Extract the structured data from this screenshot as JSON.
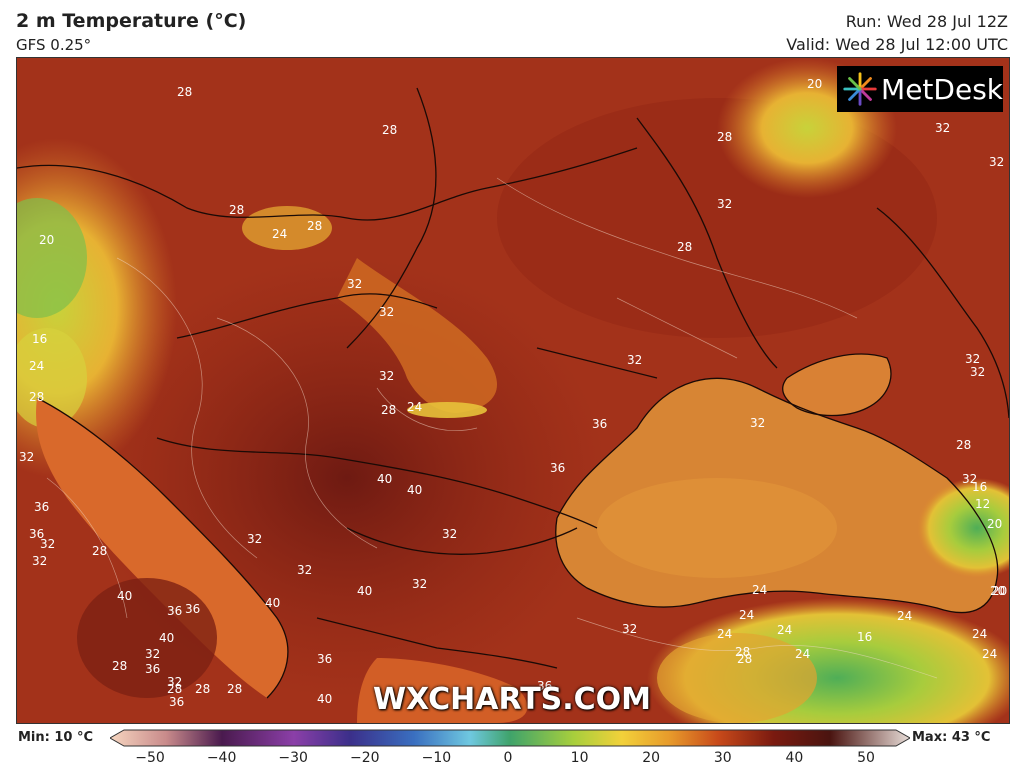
{
  "header": {
    "title": "2 m Temperature (°C)",
    "model": "GFS 0.25°",
    "run": "Run: Wed 28 Jul 12Z",
    "valid": "Valid: Wed 28 Jul 12:00 UTC"
  },
  "logo": {
    "text": "MetDesk",
    "icon": "metdesk-starburst-icon"
  },
  "watermark": "WXCHARTS.COM",
  "colorbar": {
    "min_label": "Min: 10 °C",
    "max_label": "Max: 43 °C",
    "ticks": [
      "−50",
      "−40",
      "−30",
      "−20",
      "−10",
      "0",
      "10",
      "20",
      "30",
      "40",
      "50"
    ]
  },
  "map_labels": [
    {
      "text": "28"
    },
    {
      "text": "28"
    },
    {
      "text": "28"
    },
    {
      "text": "24"
    },
    {
      "text": "28"
    },
    {
      "text": "20"
    },
    {
      "text": "20"
    },
    {
      "text": "32"
    },
    {
      "text": "32"
    },
    {
      "text": "28"
    },
    {
      "text": "32"
    },
    {
      "text": "28"
    },
    {
      "text": "32"
    },
    {
      "text": "32"
    },
    {
      "text": "32"
    },
    {
      "text": "32"
    },
    {
      "text": "16"
    },
    {
      "text": "24"
    },
    {
      "text": "28"
    },
    {
      "text": "32"
    },
    {
      "text": "28"
    },
    {
      "text": "24"
    },
    {
      "text": "36"
    },
    {
      "text": "32"
    },
    {
      "text": "36"
    },
    {
      "text": "28"
    },
    {
      "text": "40"
    },
    {
      "text": "40"
    },
    {
      "text": "36"
    },
    {
      "text": "32"
    },
    {
      "text": "36"
    },
    {
      "text": "32"
    },
    {
      "text": "32"
    },
    {
      "text": "36"
    },
    {
      "text": "32"
    },
    {
      "text": "28"
    },
    {
      "text": "40"
    },
    {
      "text": "36"
    },
    {
      "text": "40"
    },
    {
      "text": "28"
    },
    {
      "text": "32"
    },
    {
      "text": "40"
    },
    {
      "text": "32"
    },
    {
      "text": "32"
    },
    {
      "text": "40"
    },
    {
      "text": "32"
    },
    {
      "text": "36"
    },
    {
      "text": "28"
    },
    {
      "text": "36"
    },
    {
      "text": "32"
    },
    {
      "text": "28"
    },
    {
      "text": "28"
    },
    {
      "text": "36"
    },
    {
      "text": "40"
    },
    {
      "text": "36"
    },
    {
      "text": "32"
    },
    {
      "text": "28"
    },
    {
      "text": "24"
    },
    {
      "text": "24"
    },
    {
      "text": "24"
    },
    {
      "text": "28"
    },
    {
      "text": "24"
    },
    {
      "text": "24"
    },
    {
      "text": "16"
    },
    {
      "text": "24"
    },
    {
      "text": "24"
    },
    {
      "text": "24"
    },
    {
      "text": "20"
    },
    {
      "text": "32"
    },
    {
      "text": "32"
    },
    {
      "text": "16"
    },
    {
      "text": "12"
    },
    {
      "text": "20"
    },
    {
      "text": "20"
    }
  ],
  "colors": {
    "scale": [
      "#f4c7a9",
      "#6b3a8c",
      "#3b2f8a",
      "#3a5fb8",
      "#5fb9d9",
      "#3fa36b",
      "#a8cf3c",
      "#f2d13a",
      "#e79a2b",
      "#c84a1a",
      "#8c1f10",
      "#5a1a14",
      "#d9c7c0"
    ]
  }
}
